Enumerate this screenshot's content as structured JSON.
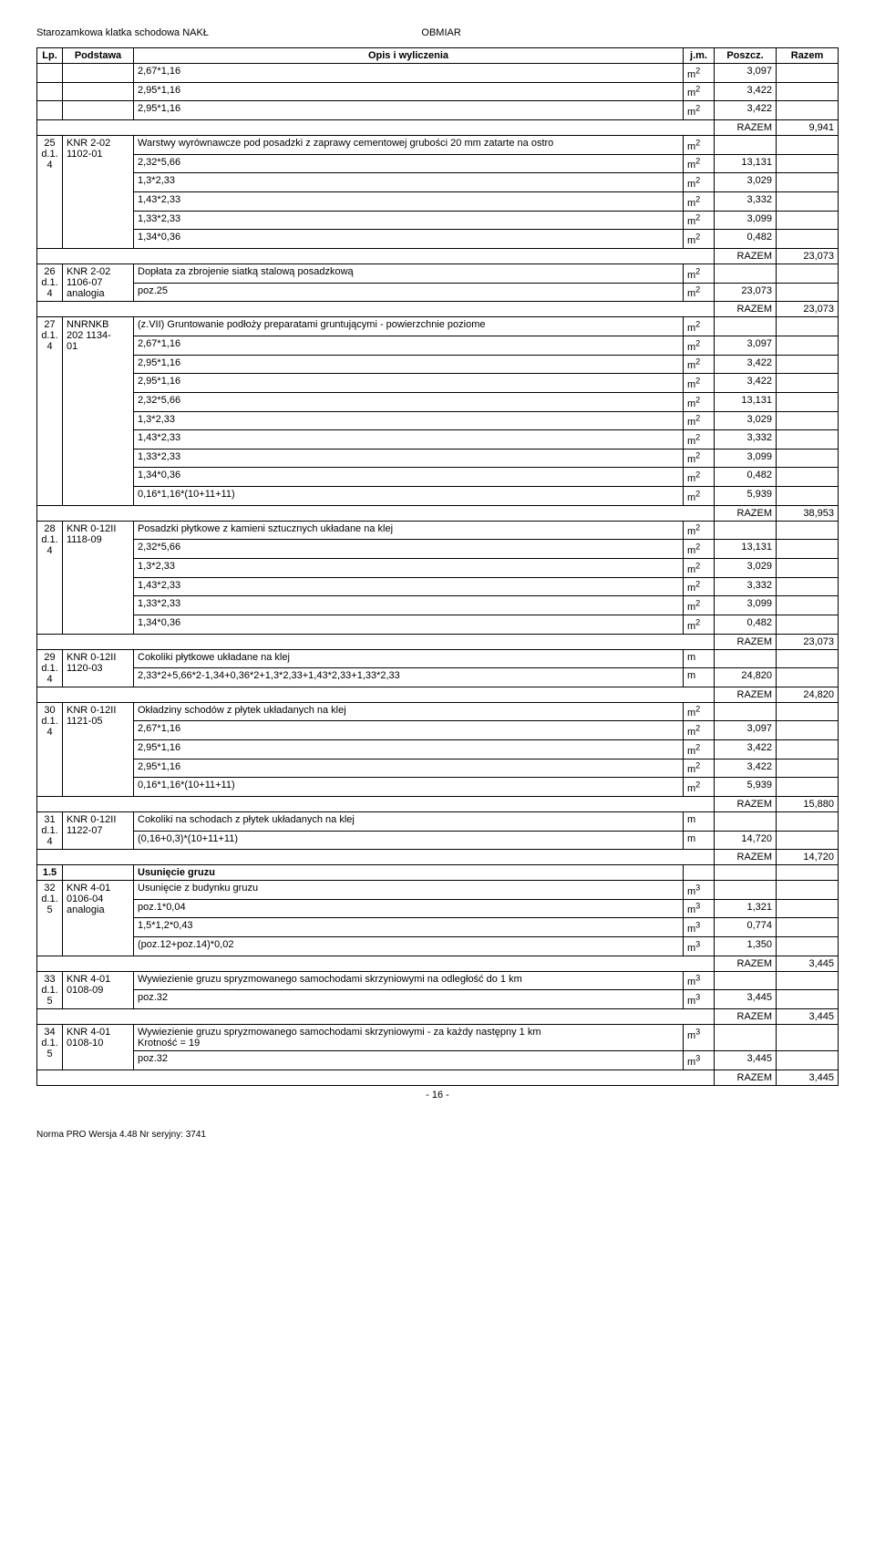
{
  "header": {
    "left": "Starozamkowa klatka schodowa NAKŁ",
    "right": "OBMIAR"
  },
  "colHeaders": {
    "lp": "Lp.",
    "podstawa": "Podstawa",
    "opis": "Opis i wyliczenia",
    "jm": "j.m.",
    "poszcz": "Poszcz.",
    "razem": "Razem"
  },
  "footer": {
    "pageNum": "- 16 -",
    "norma": "Norma PRO Wersja 4.48 Nr seryjny: 3741"
  },
  "rows": [
    {
      "t": "calc",
      "opis": "2,67*1,16",
      "jm": "m2",
      "poszcz": "3,097"
    },
    {
      "t": "calc",
      "opis": "2,95*1,16",
      "jm": "m2",
      "poszcz": "3,422"
    },
    {
      "t": "calc",
      "opis": "2,95*1,16",
      "jm": "m2",
      "poszcz": "3,422"
    },
    {
      "t": "razem",
      "label": "RAZEM",
      "val": "9,941"
    },
    {
      "t": "item",
      "lp": "25\nd.1.\n4",
      "pod": "KNR 2-02\n1102-01",
      "opis": "Warstwy wyrównawcze pod posadzki z zaprawy cementowej grubości 20 mm zatarte na ostro",
      "jm": "m2"
    },
    {
      "t": "calc",
      "opis": "2,32*5,66",
      "jm": "m2",
      "poszcz": "13,131"
    },
    {
      "t": "calc",
      "opis": "1,3*2,33",
      "jm": "m2",
      "poszcz": "3,029"
    },
    {
      "t": "calc",
      "opis": "1,43*2,33",
      "jm": "m2",
      "poszcz": "3,332"
    },
    {
      "t": "calc",
      "opis": "1,33*2,33",
      "jm": "m2",
      "poszcz": "3,099"
    },
    {
      "t": "calc",
      "opis": "1,34*0,36",
      "jm": "m2",
      "poszcz": "0,482"
    },
    {
      "t": "razem",
      "label": "RAZEM",
      "val": "23,073"
    },
    {
      "t": "item",
      "lp": "26\nd.1.\n4",
      "pod": "KNR 2-02\n1106-07\nanalogia",
      "opis": "Dopłata za zbrojenie siatką stalową posadzkową",
      "jm": "m2"
    },
    {
      "t": "calc",
      "opis": "poz.25",
      "jm": "m2",
      "poszcz": "23,073"
    },
    {
      "t": "razem",
      "label": "RAZEM",
      "val": "23,073"
    },
    {
      "t": "item",
      "lp": "27\nd.1.\n4",
      "pod": "NNRNKB\n202 1134-\n01",
      "opis": "(z.VII) Gruntowanie podłoży preparatami gruntującymi - powierzchnie poziome",
      "jm": "m2"
    },
    {
      "t": "calc",
      "opis": "2,67*1,16",
      "jm": "m2",
      "poszcz": "3,097"
    },
    {
      "t": "calc",
      "opis": "2,95*1,16",
      "jm": "m2",
      "poszcz": "3,422"
    },
    {
      "t": "calc",
      "opis": "2,95*1,16",
      "jm": "m2",
      "poszcz": "3,422"
    },
    {
      "t": "calc",
      "opis": "2,32*5,66",
      "jm": "m2",
      "poszcz": "13,131"
    },
    {
      "t": "calc",
      "opis": "1,3*2,33",
      "jm": "m2",
      "poszcz": "3,029"
    },
    {
      "t": "calc",
      "opis": "1,43*2,33",
      "jm": "m2",
      "poszcz": "3,332"
    },
    {
      "t": "calc",
      "opis": "1,33*2,33",
      "jm": "m2",
      "poszcz": "3,099"
    },
    {
      "t": "calc",
      "opis": "1,34*0,36",
      "jm": "m2",
      "poszcz": "0,482"
    },
    {
      "t": "calc",
      "opis": "0,16*1,16*(10+11+11)",
      "jm": "m2",
      "poszcz": "5,939"
    },
    {
      "t": "razem",
      "label": "RAZEM",
      "val": "38,953"
    },
    {
      "t": "item",
      "lp": "28\nd.1.\n4",
      "pod": "KNR 0-12II\n1118-09",
      "opis": "Posadzki płytkowe z kamieni sztucznych układane na klej",
      "jm": "m2"
    },
    {
      "t": "calc",
      "opis": "2,32*5,66",
      "jm": "m2",
      "poszcz": "13,131"
    },
    {
      "t": "calc",
      "opis": "1,3*2,33",
      "jm": "m2",
      "poszcz": "3,029"
    },
    {
      "t": "calc",
      "opis": "1,43*2,33",
      "jm": "m2",
      "poszcz": "3,332"
    },
    {
      "t": "calc",
      "opis": "1,33*2,33",
      "jm": "m2",
      "poszcz": "3,099"
    },
    {
      "t": "calc",
      "opis": "1,34*0,36",
      "jm": "m2",
      "poszcz": "0,482"
    },
    {
      "t": "razem",
      "label": "RAZEM",
      "val": "23,073"
    },
    {
      "t": "item",
      "lp": "29\nd.1.\n4",
      "pod": "KNR 0-12II\n1120-03",
      "opis": "Cokoliki płytkowe układane na klej",
      "jm": "m"
    },
    {
      "t": "calc",
      "opis": "2,33*2+5,66*2-1,34+0,36*2+1,3*2,33+1,43*2,33+1,33*2,33",
      "jm": "m",
      "poszcz": "24,820"
    },
    {
      "t": "razem",
      "label": "RAZEM",
      "val": "24,820"
    },
    {
      "t": "item",
      "lp": "30\nd.1.\n4",
      "pod": "KNR 0-12II\n1121-05",
      "opis": "Okładziny schodów z płytek układanych na klej",
      "jm": "m2"
    },
    {
      "t": "calc",
      "opis": "2,67*1,16",
      "jm": "m2",
      "poszcz": "3,097"
    },
    {
      "t": "calc",
      "opis": "2,95*1,16",
      "jm": "m2",
      "poszcz": "3,422"
    },
    {
      "t": "calc",
      "opis": "2,95*1,16",
      "jm": "m2",
      "poszcz": "3,422"
    },
    {
      "t": "calc",
      "opis": "0,16*1,16*(10+11+11)",
      "jm": "m2",
      "poszcz": "5,939"
    },
    {
      "t": "razem",
      "label": "RAZEM",
      "val": "15,880"
    },
    {
      "t": "item",
      "lp": "31\nd.1.\n4",
      "pod": "KNR 0-12II\n1122-07",
      "opis": "Cokoliki na schodach z płytek układanych na klej",
      "jm": "m"
    },
    {
      "t": "calc",
      "opis": "(0,16+0,3)*(10+11+11)",
      "jm": "m",
      "poszcz": "14,720"
    },
    {
      "t": "razem",
      "label": "RAZEM",
      "val": "14,720"
    },
    {
      "t": "section",
      "lp": "1.5",
      "opis": "Usunięcie gruzu"
    },
    {
      "t": "item",
      "lp": "32\nd.1.\n5",
      "pod": "KNR 4-01\n0106-04\nanalogia",
      "opis": "Usunięcie z budynku gruzu",
      "jm": "m3"
    },
    {
      "t": "calc",
      "opis": "poz.1*0,04",
      "jm": "m3",
      "poszcz": "1,321"
    },
    {
      "t": "calc",
      "opis": "1,5*1,2*0,43",
      "jm": "m3",
      "poszcz": "0,774"
    },
    {
      "t": "calc",
      "opis": "(poz.12+poz.14)*0,02",
      "jm": "m3",
      "poszcz": "1,350"
    },
    {
      "t": "razem",
      "label": "RAZEM",
      "val": "3,445"
    },
    {
      "t": "item",
      "lp": "33\nd.1.\n5",
      "pod": "KNR 4-01\n0108-09",
      "opis": "Wywiezienie gruzu spryzmowanego samochodami skrzyniowymi na odległość do 1 km",
      "jm": "m3"
    },
    {
      "t": "calc",
      "opis": "poz.32",
      "jm": "m3",
      "poszcz": "3,445"
    },
    {
      "t": "razem",
      "label": "RAZEM",
      "val": "3,445"
    },
    {
      "t": "item",
      "lp": "34\nd.1.\n5",
      "pod": "KNR 4-01\n0108-10",
      "opis": "Wywiezienie gruzu spryzmowanego samochodami skrzyniowymi - za każdy następny 1 km\nKrotność = 19",
      "jm": "m3"
    },
    {
      "t": "calc",
      "opis": "poz.32",
      "jm": "m3",
      "poszcz": "3,445"
    },
    {
      "t": "razem",
      "label": "RAZEM",
      "val": "3,445"
    }
  ]
}
